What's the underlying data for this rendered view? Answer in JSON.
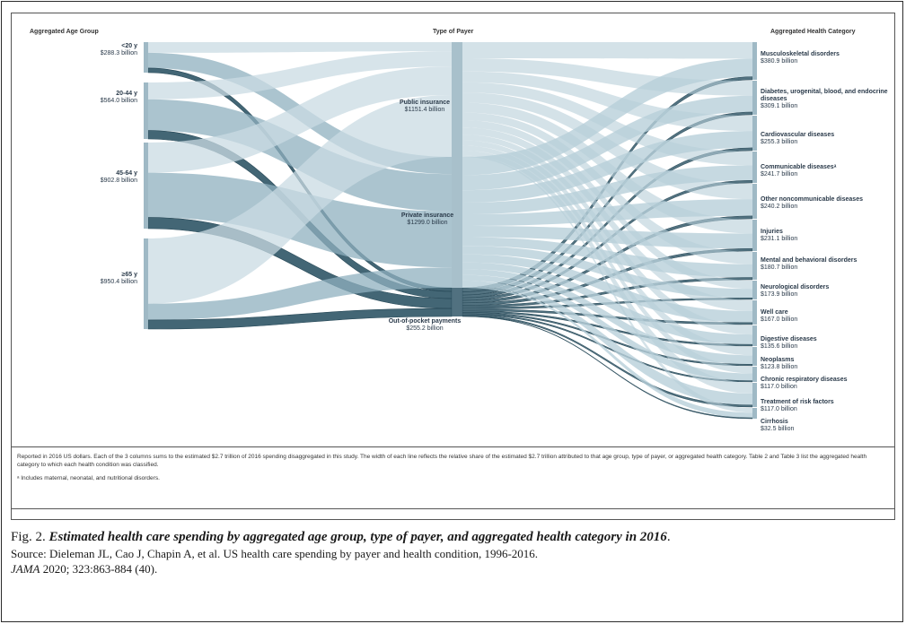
{
  "headers": {
    "age": "Aggregated Age Group",
    "payer": "Type of Payer",
    "category": "Aggregated Health Category"
  },
  "ages": [
    {
      "name": "<20 y",
      "value": "$288.3 billion",
      "amount": 288.3
    },
    {
      "name": "20-44 y",
      "value": "$564.0 billion",
      "amount": 564.0
    },
    {
      "name": "45-64 y",
      "value": "$902.8 billion",
      "amount": 902.8
    },
    {
      "name": "≥65 y",
      "value": "$950.4 billion",
      "amount": 950.4
    }
  ],
  "payers": [
    {
      "name": "Public insurance",
      "value": "$1151.4 billion",
      "amount": 1151.4
    },
    {
      "name": "Private insurance",
      "value": "$1299.0 billion",
      "amount": 1299.0
    },
    {
      "name": "Out-of-pocket payments",
      "value": "$255.2 billion",
      "amount": 255.2
    }
  ],
  "categories": [
    {
      "name": "Musculoskeletal disorders",
      "value": "$380.9 billion",
      "amount": 380.9
    },
    {
      "name": "Diabetes, urogenital, blood, and endocrine diseases",
      "value": "$309.1 billion",
      "amount": 309.1
    },
    {
      "name": "Cardiovascular diseases",
      "value": "$255.3 billion",
      "amount": 255.3
    },
    {
      "name": "Communicable diseasesᵃ",
      "value": "$241.7 billion",
      "amount": 241.7
    },
    {
      "name": "Other noncommunicable diseases",
      "value": "$240.2 billion",
      "amount": 240.2
    },
    {
      "name": "Injuries",
      "value": "$231.1 billion",
      "amount": 231.1
    },
    {
      "name": "Mental and behavioral disorders",
      "value": "$180.7 billion",
      "amount": 180.7
    },
    {
      "name": "Neurological disorders",
      "value": "$173.9 billion",
      "amount": 173.9
    },
    {
      "name": "Well care",
      "value": "$167.0 billion",
      "amount": 167.0
    },
    {
      "name": "Digestive diseases",
      "value": "$135.6 billion",
      "amount": 135.6
    },
    {
      "name": "Neoplasms",
      "value": "$123.8 billion",
      "amount": 123.8
    },
    {
      "name": "Chronic respiratory diseases",
      "value": "$117.0 billion",
      "amount": 117.0
    },
    {
      "name": "Treatment of risk factors",
      "value": "$117.0 billion",
      "amount": 117.0
    },
    {
      "name": "Cirrhosis",
      "value": "$32.5 billion",
      "amount": 32.5
    }
  ],
  "colors": {
    "age_public": "#c9dbe3",
    "age_private": "#8fb0bf",
    "age_oop": "#2f5566",
    "cat_flow": "#b8cfd9",
    "cat_oop": "#34596a",
    "node": "#9fb9c5",
    "node_dark": "#3e6272"
  },
  "notes": {
    "line1": "Reported in 2016 US dollars. Each of the 3 columns sums to the estimated $2.7 trillion of 2016 spending disaggregated in this study. The width of each line reflects the relative share of the estimated $2.7 trillion attributed to that age group, type of payer, or aggregated health category. Table 2 and Table 3 list the aggregated health category to which each health condition was classified.",
    "line2": "ᵃ Includes maternal, neonatal, and nutritional disorders."
  },
  "caption": {
    "fig_label": "Fig. 2.",
    "title": "Estimated health care spending by aggregated age group, type of payer, and aggregated health category in 2016",
    "title_end": ".",
    "source": "Source: Dieleman JL, Cao J, Chapin A, et al. US health care spending by payer and health condition, 1996-2016.",
    "journal": "JAMA",
    "citation": " 2020; 323:863-884 (40)."
  }
}
